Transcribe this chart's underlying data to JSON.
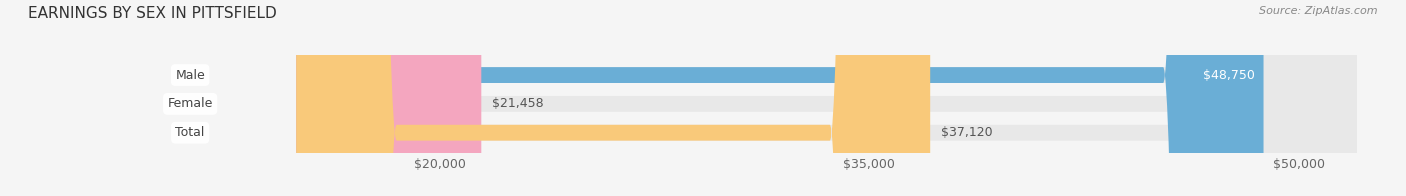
{
  "title": "EARNINGS BY SEX IN PITTSFIELD",
  "source": "Source: ZipAtlas.com",
  "categories": [
    "Male",
    "Female",
    "Total"
  ],
  "values": [
    48750,
    21458,
    37120
  ],
  "bar_colors": [
    "#6aaed6",
    "#f4a6bf",
    "#f9c97a"
  ],
  "label_colors": [
    "#ffffff",
    "#555555",
    "#555555"
  ],
  "label_inside": [
    true,
    false,
    false
  ],
  "x_min": 15000,
  "x_max": 52000,
  "x_ticks": [
    20000,
    35000,
    50000
  ],
  "x_tick_labels": [
    "$20,000",
    "$35,000",
    "$50,000"
  ],
  "background_color": "#f5f5f5",
  "bar_background_color": "#e8e8e8",
  "title_fontsize": 11,
  "tick_fontsize": 9,
  "bar_label_fontsize": 9,
  "category_fontsize": 9,
  "bar_height": 0.55,
  "figsize": [
    14.06,
    1.96
  ]
}
